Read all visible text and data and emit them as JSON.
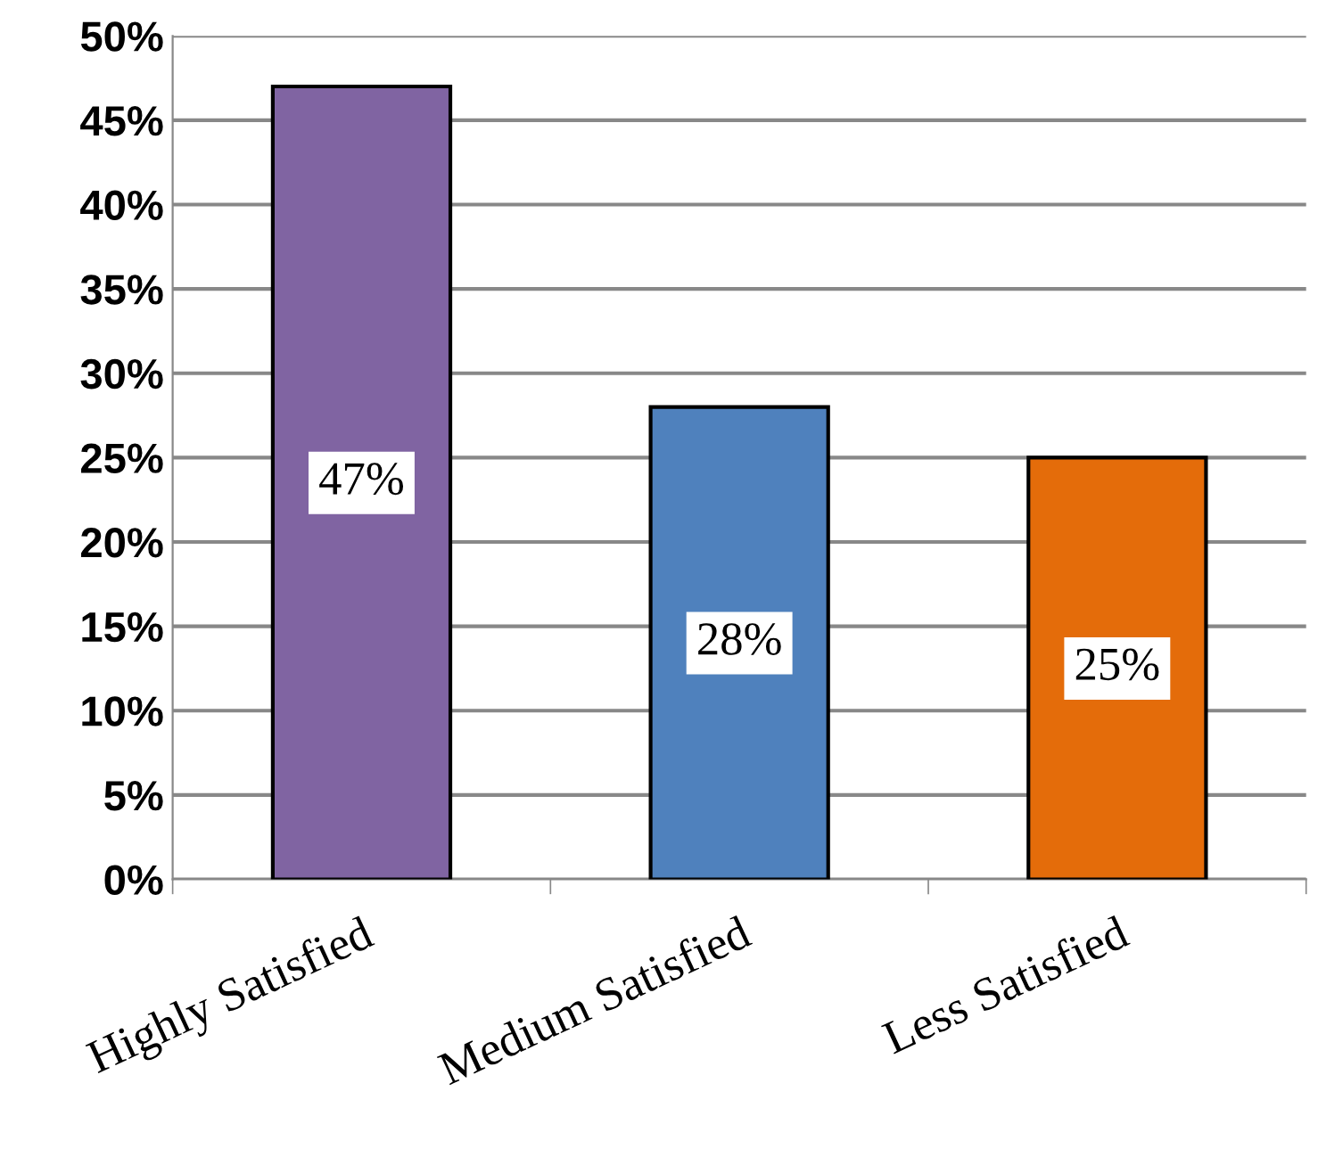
{
  "chart_data": {
    "type": "bar",
    "categories": [
      "Highly Satisfied",
      "Medium Satisfied",
      "Less Satisfied"
    ],
    "values": [
      47,
      28,
      25
    ],
    "colors": [
      "#8064a2",
      "#4f81bd",
      "#e46c0a"
    ],
    "value_labels": [
      "47%",
      "28%",
      "25%"
    ],
    "ylim": [
      0,
      50
    ],
    "yticks": [
      {
        "value": 0,
        "label": "0%"
      },
      {
        "value": 5,
        "label": "5%"
      },
      {
        "value": 10,
        "label": "10%"
      },
      {
        "value": 15,
        "label": "15%"
      },
      {
        "value": 20,
        "label": "20%"
      },
      {
        "value": 25,
        "label": "25%"
      },
      {
        "value": 30,
        "label": "30%"
      },
      {
        "value": 35,
        "label": "35%"
      },
      {
        "value": 40,
        "label": "40%"
      },
      {
        "value": 45,
        "label": "45%"
      },
      {
        "value": 50,
        "label": "50%"
      }
    ],
    "grid": "y",
    "legend": false
  }
}
